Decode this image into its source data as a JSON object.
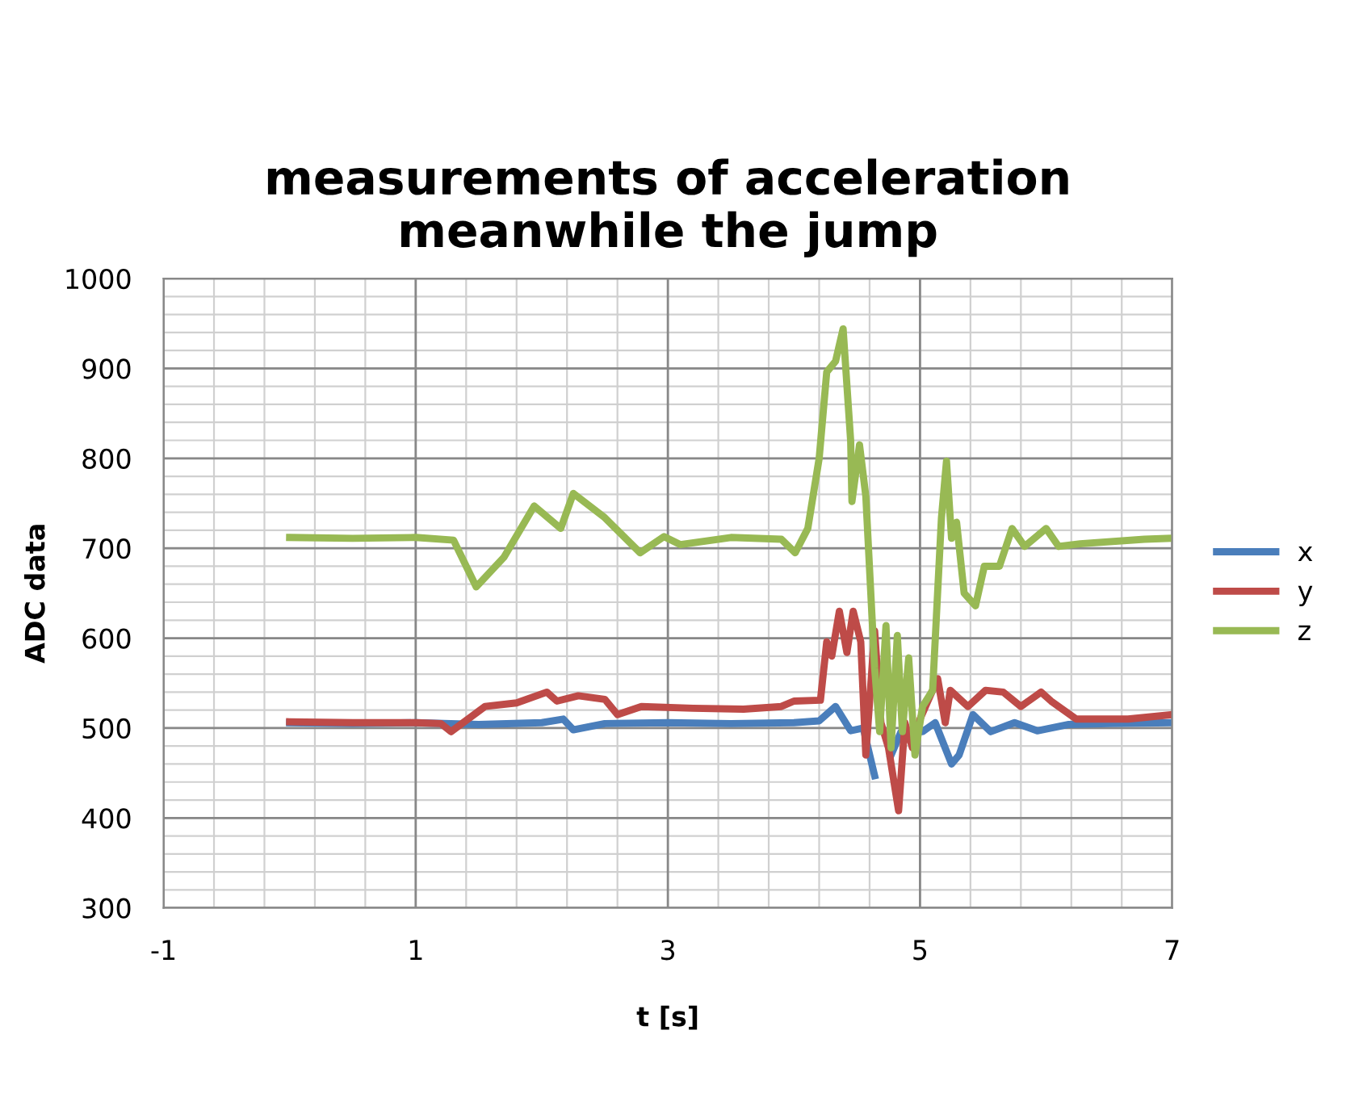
{
  "chart_data": {
    "type": "line",
    "title": "measurements of acceleration\nmeanwhile the jump",
    "xlabel": "t [s]",
    "ylabel": "ADC data",
    "xlim": [
      -1,
      7
    ],
    "xticks": [
      -1,
      1,
      3,
      5,
      7
    ],
    "ylim": [
      300,
      1000
    ],
    "yticks": [
      300,
      400,
      500,
      600,
      700,
      800,
      900,
      1000
    ],
    "grid": true,
    "legend": "right",
    "marker": "none",
    "line_style": "solid",
    "series": [
      {
        "name": "x",
        "color": "#4a7ebb",
        "x": [
          0,
          0.5,
          1.0,
          1.5,
          2.0,
          2.17,
          2.25,
          2.5,
          3.0,
          3.5,
          4.0,
          4.2,
          4.33,
          4.45,
          4.55,
          4.64,
          4.69,
          4.77,
          4.85,
          5.02,
          5.12,
          5.25,
          5.31,
          5.42,
          5.56,
          5.75,
          5.93,
          6.18,
          6.5,
          7.0
        ],
        "values": [
          506,
          505,
          506,
          504,
          506,
          510,
          498,
          505,
          506,
          505,
          506,
          508,
          524,
          497,
          500,
          447,
          null,
          470,
          496,
          496,
          506,
          460,
          470,
          515,
          496,
          506,
          497,
          504,
          505,
          506
        ]
      },
      {
        "name": "y",
        "color": "#be4b48",
        "x": [
          0,
          0.5,
          1.0,
          1.2,
          1.28,
          1.55,
          1.8,
          2.04,
          2.12,
          2.29,
          2.5,
          2.6,
          2.79,
          3.2,
          3.6,
          3.9,
          4.0,
          4.21,
          4.26,
          4.3,
          4.36,
          4.42,
          4.47,
          4.53,
          4.57,
          4.64,
          4.69,
          4.75,
          4.83,
          4.88,
          4.94,
          5.0,
          5.14,
          5.2,
          5.24,
          5.38,
          5.52,
          5.66,
          5.8,
          5.96,
          6.04,
          6.24,
          6.65,
          7.0
        ],
        "values": [
          507,
          506,
          506,
          505,
          496,
          524,
          528,
          540,
          530,
          536,
          532,
          515,
          524,
          522,
          521,
          524,
          530,
          531,
          596,
          580,
          630,
          584,
          630,
          596,
          470,
          608,
          506,
          478,
          408,
          506,
          478,
          510,
          555,
          506,
          542,
          524,
          542,
          540,
          524,
          540,
          530,
          510,
          510,
          515
        ]
      },
      {
        "name": "z",
        "color": "#98b954",
        "x": [
          0,
          0.5,
          1.0,
          1.3,
          1.48,
          1.7,
          1.94,
          2.15,
          2.25,
          2.5,
          2.78,
          2.97,
          3.1,
          3.5,
          3.9,
          4.01,
          4.11,
          4.2,
          4.26,
          4.33,
          4.39,
          4.45,
          4.46,
          4.52,
          4.57,
          4.64,
          4.68,
          4.73,
          4.77,
          4.82,
          4.86,
          4.91,
          4.96,
          5.02,
          5.1,
          5.17,
          5.21,
          5.25,
          5.29,
          5.35,
          5.44,
          5.51,
          5.63,
          5.73,
          5.83,
          6.0,
          6.1,
          6.27,
          6.78,
          6.97
        ],
        "values": [
          712,
          711,
          712,
          709,
          657,
          690,
          747,
          722,
          761,
          734,
          695,
          713,
          704,
          712,
          710,
          695,
          722,
          800,
          896,
          908,
          944,
          819,
          752,
          815,
          758,
          567,
          496,
          614,
          478,
          603,
          496,
          578,
          470,
          524,
          542,
          734,
          797,
          711,
          729,
          650,
          636,
          680,
          680,
          722,
          702,
          722,
          702,
          705,
          710,
          711
        ]
      }
    ]
  }
}
